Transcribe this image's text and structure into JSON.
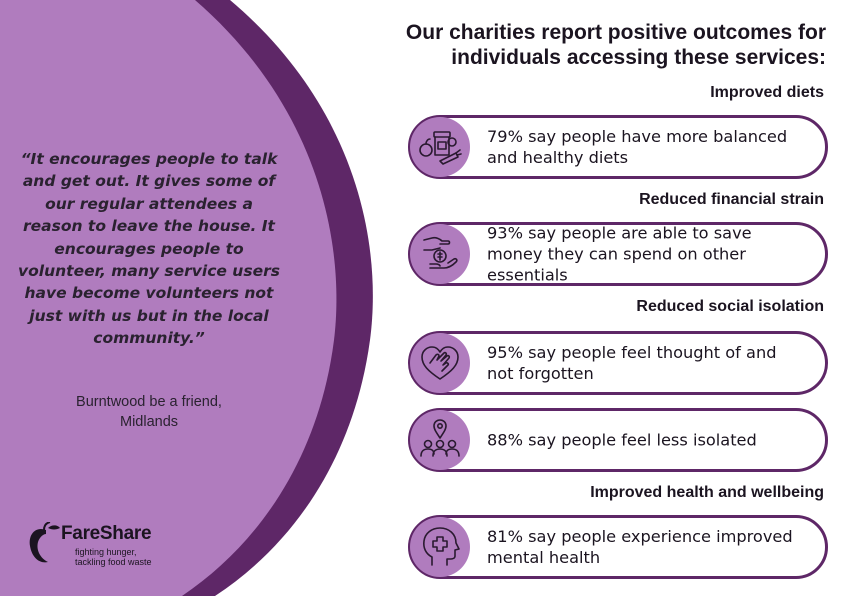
{
  "heading": {
    "line1": "Our charities report positive outcomes for",
    "line2": "individuals accessing these services:"
  },
  "quote": {
    "text": "“It encourages people to talk and get out. It gives some of our regular attendees a reason to leave the house. It encourages people to volunteer, many service users have become volunteers not just with us but in the local community.”",
    "source_line1": "Burntwood be a friend,",
    "source_line2": "Midlands"
  },
  "logo": {
    "name": "FareShare",
    "tagline_line1": "fighting hunger,",
    "tagline_line2": "tackling food waste"
  },
  "categories": {
    "diets": "Improved diets",
    "financial": "Reduced financial strain",
    "isolation": "Reduced social isolation",
    "health": "Improved health and wellbeing"
  },
  "outcomes": [
    {
      "text": "79% say people have more balanced and healthy diets",
      "icon": "food-basket-icon"
    },
    {
      "text": "93% say people are able to save money they can spend on other essentials",
      "icon": "money-hand-icon"
    },
    {
      "text": "95% say people feel thought of and not forgotten",
      "icon": "heart-hand-icon"
    },
    {
      "text": "88% say people feel less isolated",
      "icon": "people-location-icon"
    },
    {
      "text": "81% say people experience improved mental health",
      "icon": "head-cross-icon"
    }
  ],
  "colors": {
    "light_purple": "#b07cbe",
    "dark_purple": "#5e2767",
    "text": "#1b1420"
  }
}
